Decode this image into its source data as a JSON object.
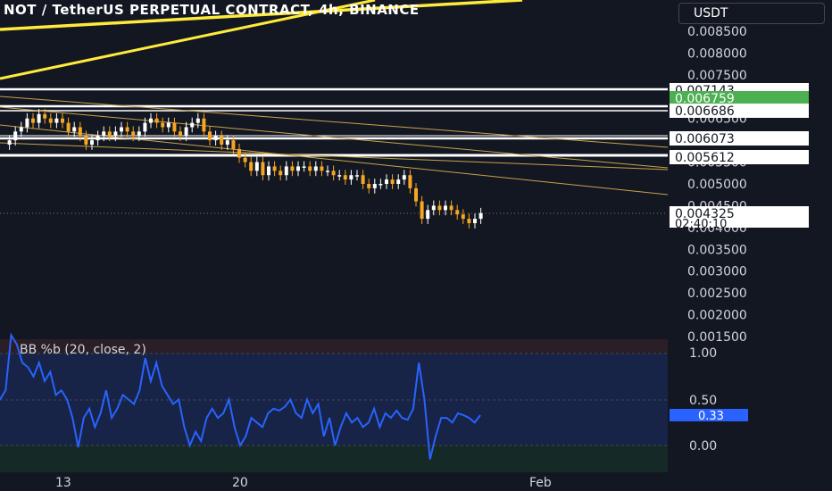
{
  "header": {
    "title": "NOT / TetherUS PERPETUAL CONTRACT, 4h, BINANCE",
    "currency_button": "USDT"
  },
  "price_axis": {
    "ticks": [
      "0.008500",
      "0.008000",
      "0.007500",
      "0.007000",
      "0.006500",
      "0.006000",
      "0.005500",
      "0.005000",
      "0.004500",
      "0.004000",
      "0.003500",
      "0.003000",
      "0.002500",
      "0.002000",
      "0.001500"
    ],
    "level_labels": [
      {
        "value": "0.007143",
        "style": "white"
      },
      {
        "value": "0.006759",
        "style": "green"
      },
      {
        "value": "0.006686",
        "style": "white"
      },
      {
        "value": "0.006073",
        "style": "white"
      },
      {
        "value": "0.005612",
        "style": "white"
      }
    ],
    "last_price": "0.004325",
    "countdown": "02:40:10"
  },
  "indicator": {
    "title": "BB %b (20, close, 2)",
    "ticks": [
      "1.00",
      "0.50",
      "0.00"
    ],
    "current_value": "0.33"
  },
  "time_axis": {
    "labels": [
      "13",
      "20",
      "Feb"
    ]
  },
  "colors": {
    "background": "#131722",
    "candle_up": "#ffffff",
    "candle_down": "#f5a623",
    "trendline_yellow": "#ffeb3b",
    "bb_line": "#2962ff",
    "green_label": "#4caf50",
    "band_upper": "#2a1e27",
    "band_mid": "#172447",
    "band_lower": "#152a26"
  },
  "chart_data": {
    "type": "line",
    "title": "BB %b (20, close, 2)",
    "ylim": [
      -0.15,
      1.2
    ],
    "series": [
      {
        "name": "BB %b",
        "values": [
          0.5,
          0.6,
          1.2,
          1.1,
          0.9,
          0.85,
          0.75,
          0.9,
          0.7,
          0.8,
          0.55,
          0.6,
          0.5,
          0.3,
          -0.02,
          0.3,
          0.4,
          0.2,
          0.35,
          0.6,
          0.3,
          0.4,
          0.55,
          0.5,
          0.45,
          0.6,
          0.95,
          0.7,
          0.9,
          0.65,
          0.55,
          0.45,
          0.5,
          0.2,
          0.0,
          0.15,
          0.05,
          0.3,
          0.4,
          0.3,
          0.35,
          0.5,
          0.2,
          0.0,
          0.1,
          0.3,
          0.25,
          0.2,
          0.35,
          0.4,
          0.38,
          0.42,
          0.5,
          0.35,
          0.3,
          0.5,
          0.35,
          0.45,
          0.1,
          0.3,
          0.0,
          0.2,
          0.35,
          0.25,
          0.3,
          0.2,
          0.25,
          0.4,
          0.2,
          0.35,
          0.3,
          0.38,
          0.3,
          0.28,
          0.4,
          0.9,
          0.5,
          -0.15,
          0.1,
          0.3,
          0.3,
          0.25,
          0.35,
          0.33,
          0.3,
          0.25,
          0.33
        ]
      }
    ]
  }
}
